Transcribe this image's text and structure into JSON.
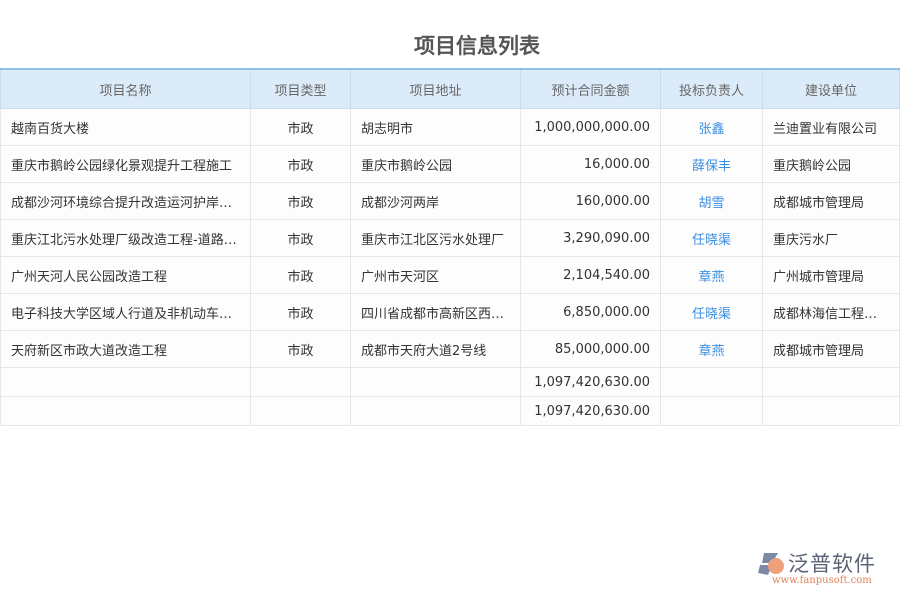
{
  "title": "项目信息列表",
  "columns": [
    "项目名称",
    "项目类型",
    "项目地址",
    "预计合同金额",
    "投标负责人",
    "建设单位"
  ],
  "rows": [
    [
      "越南百货大楼",
      "市政",
      "胡志明市",
      "1,000,000,000.00",
      "张鑫",
      "兰迪置业有限公司"
    ],
    [
      "重庆市鹅岭公园绿化景观提升工程施工",
      "市政",
      "重庆市鹅岭公园",
      "16,000.00",
      "薛保丰",
      "重庆鹅岭公园"
    ],
    [
      "成都沙河环境综合提升改造运河护岸…",
      "市政",
      "成都沙河两岸",
      "160,000.00",
      "胡雪",
      "成都城市管理局"
    ],
    [
      "重庆江北污水处理厂级改造工程-道路…",
      "市政",
      "重庆市江北区污水处理厂",
      "3,290,090.00",
      "任晓渠",
      "重庆污水厂"
    ],
    [
      "广州天河人民公园改造工程",
      "市政",
      "广州市天河区",
      "2,104,540.00",
      "章燕",
      "广州城市管理局"
    ],
    [
      "电子科技大学区域人行道及非机动车…",
      "市政",
      "四川省成都市高新区西…",
      "6,850,000.00",
      "任晓渠",
      "成都林海信工程…"
    ],
    [
      "天府新区市政大道改造工程",
      "市政",
      "成都市天府大道2号线",
      "85,000,000.00",
      "章燕",
      "成都城市管理局"
    ]
  ],
  "totals": [
    "1,097,420,630.00",
    "1,097,420,630.00"
  ],
  "logo": {
    "name": "泛普软件",
    "url": "www.fanpusoft.com"
  },
  "colors": {
    "header_bg": "#dcebf9",
    "link": "#3b8ee0"
  }
}
